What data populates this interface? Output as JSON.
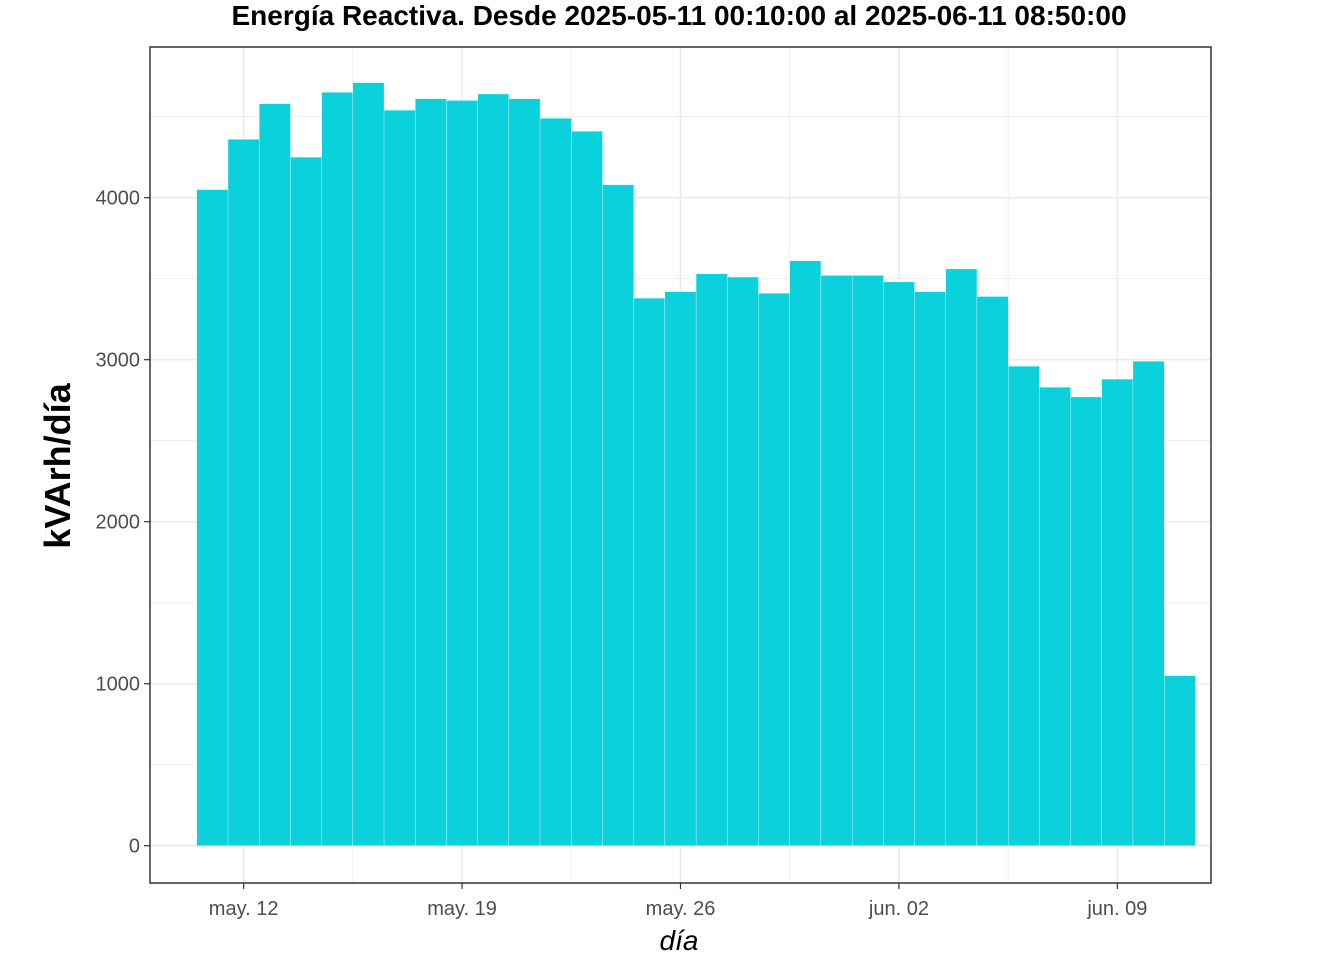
{
  "chart_data": {
    "type": "bar",
    "title": "Energía Reactiva. Desde  2025-05-11 00:10:00  al  2025-06-11 08:50:00",
    "xlabel": "día",
    "ylabel": "kVArh/día",
    "x": [
      "2025-05-11",
      "2025-05-12",
      "2025-05-13",
      "2025-05-14",
      "2025-05-15",
      "2025-05-16",
      "2025-05-17",
      "2025-05-18",
      "2025-05-19",
      "2025-05-20",
      "2025-05-21",
      "2025-05-22",
      "2025-05-23",
      "2025-05-24",
      "2025-05-25",
      "2025-05-26",
      "2025-05-27",
      "2025-05-28",
      "2025-05-29",
      "2025-05-30",
      "2025-05-31",
      "2025-06-01",
      "2025-06-02",
      "2025-06-03",
      "2025-06-04",
      "2025-06-05",
      "2025-06-06",
      "2025-06-07",
      "2025-06-08",
      "2025-06-09",
      "2025-06-10",
      "2025-06-11"
    ],
    "values": [
      4050,
      4360,
      4580,
      4250,
      4650,
      4710,
      4540,
      4610,
      4600,
      4640,
      4610,
      4490,
      4410,
      4080,
      3380,
      3420,
      3530,
      3510,
      3410,
      3610,
      3520,
      3520,
      3480,
      3420,
      3560,
      3390,
      2960,
      2830,
      2770,
      2880,
      2990,
      1050
    ],
    "x_ticks": [
      {
        "date": "2025-05-12",
        "label": "may. 12"
      },
      {
        "date": "2025-05-19",
        "label": "may. 19"
      },
      {
        "date": "2025-05-26",
        "label": "may. 26"
      },
      {
        "date": "2025-06-02",
        "label": "jun. 02"
      },
      {
        "date": "2025-06-09",
        "label": "jun. 09"
      }
    ],
    "y_ticks": [
      0,
      1000,
      2000,
      3000,
      4000
    ],
    "xlim": [
      "2025-05-09",
      "2025-06-12"
    ],
    "ylim": [
      -230,
      4930
    ],
    "grid": true,
    "legend": "none",
    "bar_color": "#0bd1dc",
    "panel_border_color": "#333333",
    "grid_color": "#ebebeb"
  }
}
